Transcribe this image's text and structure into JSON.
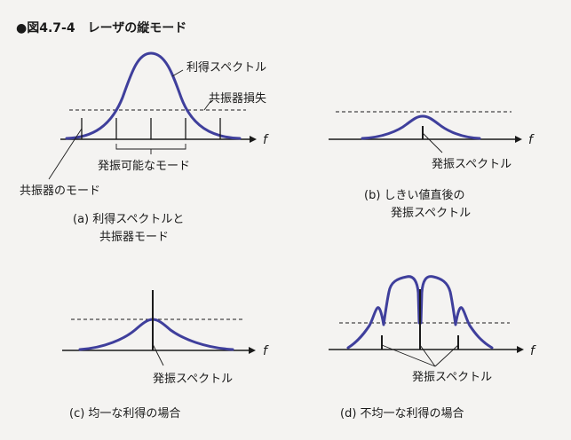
{
  "title": "●図4.7-4　レーザの縦モード",
  "axis_symbol": "f",
  "panel_a": {
    "gain_label": "利得スペクトル",
    "loss_label": "共振器損失",
    "oscillatable_label": "発振可能なモード",
    "cavity_mode_label": "共振器のモード",
    "caption_line1": "(a)  利得スペクトルと",
    "caption_line2": "共振器モード"
  },
  "panel_b": {
    "spectrum_label": "発振スペクトル",
    "caption_line1": "(b)  しきい値直後の",
    "caption_line2": "発振スペクトル"
  },
  "panel_c": {
    "spectrum_label": "発振スペクトル",
    "caption": "(c)  均一な利得の場合"
  },
  "panel_d": {
    "spectrum_label": "発振スペクトル",
    "caption": "(d)  不均一な利得の場合"
  },
  "colors": {
    "curve": "#3f3f9c",
    "line": "#1a1a1a",
    "background": "#f4f3f1"
  }
}
